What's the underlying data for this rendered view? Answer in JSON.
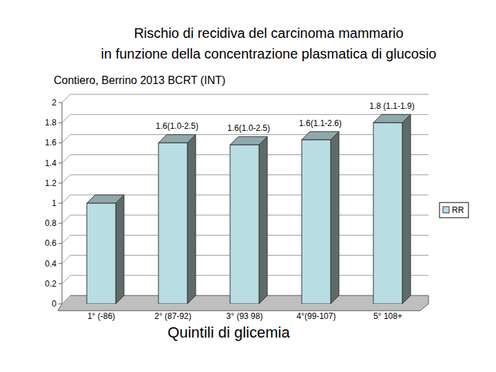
{
  "chart_data": {
    "type": "bar",
    "title": [
      "Rischio di recidiva del carcinoma mammario",
      "in funzione della concentrazione plasmatica di glucosio"
    ],
    "subtitle": "Contiero, Berrino 2013 BCRT (INT)",
    "x_label": "Quintili di glicemia",
    "categories": [
      "1° (-86)",
      "2° (87-92)",
      "3° (93 98)",
      "4°(99-107)",
      "5° 108+"
    ],
    "series": [
      {
        "name": "RR",
        "color": "#b8dde3",
        "values": [
          1.0,
          1.6,
          1.58,
          1.63,
          1.8
        ],
        "value_labels": [
          null,
          "1.6(1.0-2.5)",
          "1.6(1.0-2.5)",
          "1.6(1.1-2.6)",
          "1.8 (1.1-1.9)"
        ]
      }
    ],
    "ylim": [
      0,
      2
    ],
    "yticks": [
      0,
      0.2,
      0.4,
      0.6,
      0.8,
      1,
      1.2,
      1.4,
      1.6,
      1.8,
      2
    ],
    "grid": true,
    "legend": "right",
    "data_labels": true
  }
}
